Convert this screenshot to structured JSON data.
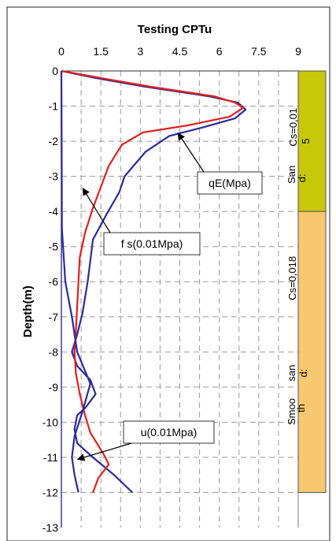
{
  "chart_data": {
    "type": "line",
    "title": "Testing CPTu",
    "ylabel": "Depth(m)",
    "xlim": [
      0,
      9
    ],
    "ylim": [
      -13,
      0
    ],
    "x_ticks": [
      "0",
      "1.5",
      "3",
      "4.5",
      "6",
      "7.5",
      "9"
    ],
    "x_tick_values": [
      0,
      1.5,
      3,
      4.5,
      6,
      7.5,
      9
    ],
    "y_ticks": [
      "0",
      "-1",
      "-2",
      "-3",
      "-4",
      "-5",
      "-6",
      "-7",
      "-8",
      "-9",
      "-10",
      "-11",
      "-12",
      "-13"
    ],
    "y_tick_values": [
      0,
      -1,
      -2,
      -3,
      -4,
      -5,
      -6,
      -7,
      -8,
      -9,
      -10,
      -11,
      -12,
      -13
    ],
    "grid": true,
    "series": [
      {
        "name": "qE(Mpa)",
        "color": "#2b2b9a",
        "points": [
          [
            0,
            0
          ],
          [
            1.3,
            -0.2
          ],
          [
            3.2,
            -0.45
          ],
          [
            5.6,
            -0.72
          ],
          [
            6.7,
            -0.9
          ],
          [
            7,
            -1.1
          ],
          [
            6.6,
            -1.35
          ],
          [
            5.4,
            -1.6
          ],
          [
            4.1,
            -1.85
          ],
          [
            3.2,
            -2.3
          ],
          [
            2.4,
            -3
          ],
          [
            2.2,
            -3.45
          ],
          [
            1.7,
            -4.1
          ],
          [
            1.2,
            -4.8
          ],
          [
            1.1,
            -5.4
          ],
          [
            1,
            -6
          ],
          [
            0.8,
            -6.9
          ],
          [
            0.6,
            -7.5
          ],
          [
            0.4,
            -8
          ],
          [
            0.6,
            -8.4
          ],
          [
            1.1,
            -8.8
          ],
          [
            1.3,
            -9.2
          ],
          [
            0.9,
            -9.6
          ],
          [
            0.6,
            -9.8
          ],
          [
            0.5,
            -10.2
          ],
          [
            0.6,
            -10.6
          ],
          [
            1.2,
            -11
          ],
          [
            2,
            -11.5
          ],
          [
            2.7,
            -12
          ]
        ]
      },
      {
        "name": "f s(0.01Mpa)",
        "color": "#e02020",
        "points": [
          [
            0,
            0
          ],
          [
            1.5,
            -0.2
          ],
          [
            3.4,
            -0.45
          ],
          [
            5.8,
            -0.72
          ],
          [
            6.6,
            -0.9
          ],
          [
            6.9,
            -1.05
          ],
          [
            6.4,
            -1.3
          ],
          [
            4.8,
            -1.55
          ],
          [
            3.1,
            -1.75
          ],
          [
            2.3,
            -2.1
          ],
          [
            1.8,
            -2.7
          ],
          [
            1.5,
            -3.3
          ],
          [
            1.2,
            -3.9
          ],
          [
            0.9,
            -4.6
          ],
          [
            0.7,
            -5.3
          ],
          [
            0.65,
            -6
          ],
          [
            0.6,
            -6.7
          ],
          [
            0.55,
            -7.4
          ],
          [
            0.5,
            -8
          ],
          [
            0.55,
            -8.6
          ],
          [
            0.7,
            -9.2
          ],
          [
            0.9,
            -9.8
          ],
          [
            1.1,
            -10.3
          ],
          [
            1.6,
            -10.9
          ],
          [
            1.8,
            -11.2
          ],
          [
            1.4,
            -11.6
          ],
          [
            1.2,
            -12
          ]
        ]
      },
      {
        "name": "u(0.01Mpa)",
        "color": "#2b2b9a",
        "points": [
          [
            0,
            0
          ],
          [
            0.02,
            -4.5
          ],
          [
            0.15,
            -6
          ],
          [
            0.4,
            -7
          ],
          [
            0.6,
            -8
          ],
          [
            1.1,
            -8.9
          ],
          [
            0.8,
            -9.7
          ],
          [
            0.5,
            -10.4
          ],
          [
            0.4,
            -11
          ],
          [
            0.5,
            -11.5
          ],
          [
            0.65,
            -12
          ]
        ]
      }
    ],
    "callouts": [
      {
        "label": "qE(Mpa)",
        "series": 0
      },
      {
        "label": "f s(0.01Mpa)",
        "series": 1
      },
      {
        "label": "u(0.01Mpa)",
        "series": 2
      }
    ],
    "layers": [
      {
        "from": 0,
        "to": -4,
        "color": "#c8c80a",
        "texts": [
          "San",
          "d:",
          "Cs=0,01",
          "5"
        ]
      },
      {
        "from": -4,
        "to": -12,
        "color": "#f8c870",
        "texts": [
          "Smoo",
          "th",
          "san",
          "d:",
          "Cs=0,018"
        ]
      }
    ]
  }
}
